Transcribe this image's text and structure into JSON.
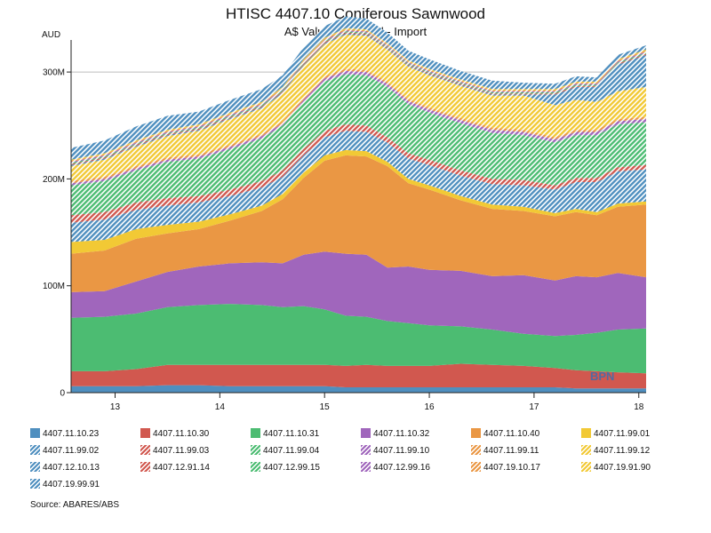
{
  "watermark": "BPN",
  "source": "Source: ABARES/ABS",
  "chart_data": {
    "type": "area",
    "stacked": true,
    "title": "HTISC 4407.10 Coniferous Sawnwood",
    "subtitle": "A$ Value, Year End - Import",
    "ylabel": "AUD",
    "xlabel": "",
    "ylim": [
      0,
      330
    ],
    "yticks": [
      {
        "value": 0,
        "label": "0"
      },
      {
        "value": 100,
        "label": "100M"
      },
      {
        "value": 200,
        "label": "200M"
      },
      {
        "value": 300,
        "label": "300M"
      }
    ],
    "xlim": [
      12.58,
      18.07
    ],
    "xticks": [
      {
        "value": 13,
        "label": "13"
      },
      {
        "value": 14,
        "label": "14"
      },
      {
        "value": 15,
        "label": "15"
      },
      {
        "value": 16,
        "label": "16"
      },
      {
        "value": 17,
        "label": "17"
      },
      {
        "value": 18,
        "label": "18"
      }
    ],
    "legend_position": "bottom",
    "x": [
      12.58,
      12.9,
      13.2,
      13.5,
      13.8,
      14.1,
      14.4,
      14.6,
      14.8,
      15.0,
      15.2,
      15.4,
      15.6,
      15.8,
      16.0,
      16.3,
      16.6,
      16.9,
      17.2,
      17.4,
      17.6,
      17.8,
      18.07
    ],
    "series": [
      {
        "name": "4407.11.10.23",
        "color": "#4f8fbf",
        "hatched": false,
        "values": [
          6,
          6,
          6,
          7,
          7,
          6,
          6,
          6,
          6,
          6,
          5,
          5,
          5,
          5,
          5,
          5,
          5,
          5,
          5,
          4,
          4,
          4,
          4
        ]
      },
      {
        "name": "4407.11.10.30",
        "color": "#d1584f",
        "hatched": false,
        "values": [
          14,
          14,
          16,
          19,
          19,
          20,
          20,
          20,
          20,
          20,
          20,
          21,
          20,
          20,
          20,
          22,
          21,
          20,
          18,
          17,
          16,
          15,
          14
        ]
      },
      {
        "name": "4407.11.10.31",
        "color": "#4cbc72",
        "hatched": false,
        "values": [
          50,
          51,
          52,
          54,
          56,
          57,
          56,
          54,
          55,
          52,
          47,
          45,
          42,
          40,
          38,
          35,
          33,
          30,
          30,
          33,
          36,
          40,
          42
        ]
      },
      {
        "name": "4407.11.10.32",
        "color": "#a066bc",
        "hatched": false,
        "values": [
          24,
          24,
          30,
          33,
          36,
          38,
          40,
          41,
          48,
          54,
          58,
          58,
          50,
          53,
          52,
          52,
          50,
          55,
          52,
          55,
          52,
          53,
          48
        ]
      },
      {
        "name": "4407.11.10.40",
        "color": "#ea9744",
        "hatched": false,
        "values": [
          36,
          38,
          40,
          36,
          35,
          40,
          48,
          60,
          72,
          85,
          92,
          92,
          95,
          78,
          75,
          66,
          63,
          60,
          60,
          60,
          58,
          62,
          68
        ]
      },
      {
        "name": "4407.11.99.01",
        "color": "#f2c935",
        "hatched": false,
        "values": [
          11,
          10,
          9,
          8,
          7,
          6,
          5,
          5,
          5,
          5,
          5,
          5,
          4,
          4,
          4,
          4,
          4,
          4,
          3,
          3,
          3,
          3,
          3
        ]
      },
      {
        "name": "4407.11.99.02",
        "color": "#4f8fbf",
        "hatched": true,
        "values": [
          18,
          19,
          18,
          18,
          18,
          17,
          17,
          16,
          16,
          17,
          18,
          18,
          18,
          19,
          19,
          19,
          19,
          20,
          22,
          25,
          28,
          30,
          30
        ]
      },
      {
        "name": "4407.11.99.03",
        "color": "#d1584f",
        "hatched": true,
        "values": [
          7,
          7,
          7,
          7,
          6,
          6,
          6,
          6,
          6,
          6,
          6,
          6,
          5,
          5,
          5,
          5,
          5,
          5,
          4,
          4,
          4,
          4,
          4
        ]
      },
      {
        "name": "4407.11.99.04",
        "color": "#4cbc72",
        "hatched": true,
        "values": [
          28,
          29,
          30,
          34,
          35,
          38,
          40,
          42,
          44,
          46,
          47,
          47,
          47,
          46,
          44,
          44,
          43,
          42,
          40,
          40,
          40,
          40,
          40
        ]
      },
      {
        "name": "4407.11.99.10",
        "color": "#a066bc",
        "hatched": true,
        "values": [
          2,
          2,
          2,
          2,
          2,
          2,
          2,
          2,
          2,
          3,
          3,
          3,
          3,
          3,
          3,
          3,
          3,
          3,
          3,
          3,
          3,
          3,
          3
        ]
      },
      {
        "name": "4407.11.99.11",
        "color": "#ea9744",
        "hatched": true,
        "values": [
          2,
          2,
          2,
          2,
          2,
          2,
          2,
          2,
          2,
          2,
          2,
          2,
          2,
          2,
          2,
          2,
          2,
          2,
          2,
          2,
          2,
          2,
          2
        ]
      },
      {
        "name": "4407.11.99.12",
        "color": "#f2c935",
        "hatched": true,
        "values": [
          14,
          16,
          18,
          20,
          22,
          24,
          24,
          26,
          30,
          30,
          32,
          32,
          30,
          30,
          30,
          30,
          30,
          32,
          30,
          28,
          26,
          26,
          28
        ]
      },
      {
        "name": "4407.12.10.13",
        "color": "#4f8fbf",
        "hatched": true,
        "values": [
          1,
          1,
          1,
          1,
          1,
          1,
          1,
          1,
          1,
          1,
          1,
          1,
          1,
          1,
          1,
          1,
          1,
          1,
          10,
          12,
          14,
          25,
          30
        ]
      },
      {
        "name": "4407.12.91.14",
        "color": "#d1584f",
        "hatched": true,
        "values": [
          1,
          1,
          1,
          1,
          1,
          1,
          1,
          1,
          1,
          1,
          1,
          1,
          1,
          1,
          1,
          1,
          1,
          1,
          1,
          1,
          1,
          1,
          1
        ]
      },
      {
        "name": "4407.12.99.15",
        "color": "#4cbc72",
        "hatched": true,
        "values": [
          1,
          1,
          1,
          1,
          1,
          1,
          1,
          1,
          1,
          1,
          1,
          1,
          1,
          1,
          1,
          1,
          1,
          1,
          1,
          1,
          1,
          1,
          1
        ]
      },
      {
        "name": "4407.12.99.16",
        "color": "#a066bc",
        "hatched": true,
        "values": [
          1,
          1,
          1,
          1,
          1,
          1,
          1,
          1,
          1,
          1,
          1,
          1,
          1,
          1,
          1,
          1,
          1,
          1,
          1,
          1,
          1,
          1,
          1
        ]
      },
      {
        "name": "4407.19.10.17",
        "color": "#ea9744",
        "hatched": true,
        "values": [
          1,
          1,
          1,
          1,
          1,
          1,
          1,
          1,
          1,
          1,
          1,
          1,
          1,
          1,
          1,
          1,
          1,
          1,
          1,
          1,
          1,
          1,
          1
        ]
      },
      {
        "name": "4407.19.91.90",
        "color": "#f2c935",
        "hatched": true,
        "values": [
          1,
          1,
          1,
          1,
          1,
          1,
          1,
          1,
          1,
          1,
          1,
          1,
          1,
          1,
          1,
          1,
          1,
          1,
          1,
          1,
          1,
          1,
          1
        ]
      },
      {
        "name": "4407.19.99.91",
        "color": "#4f8fbf",
        "hatched": true,
        "values": [
          11,
          12,
          13,
          13,
          12,
          12,
          12,
          11,
          11,
          11,
          11,
          10,
          10,
          9,
          9,
          8,
          8,
          6,
          5,
          5,
          4,
          4,
          4
        ]
      }
    ]
  }
}
